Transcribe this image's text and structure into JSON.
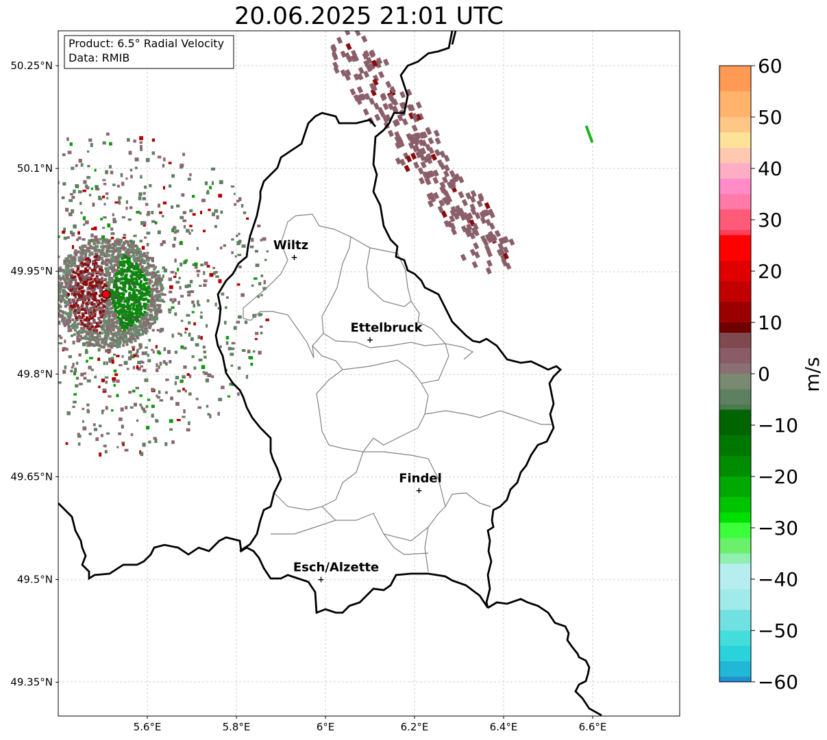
{
  "title": "20.06.2025 21:01 UTC",
  "info_box": {
    "product": "Product: 6.5° Radial Velocity",
    "data": "Data: RMIB"
  },
  "map": {
    "lon_ticks": [
      "5.6°E",
      "5.8°E",
      "6°E",
      "6.2°E",
      "6.4°E",
      "6.6°E"
    ],
    "lat_ticks": [
      "50.25°N",
      "50.1°N",
      "49.95°N",
      "49.8°N",
      "49.65°N",
      "49.5°N",
      "49.35°N"
    ],
    "cities": [
      {
        "name": "Wiltz",
        "lon": 5.93,
        "lat": 49.97
      },
      {
        "name": "Ettelbruck",
        "lon": 6.1,
        "lat": 49.85
      },
      {
        "name": "Findel",
        "lon": 6.21,
        "lat": 49.63
      },
      {
        "name": "Esch/Alzette",
        "lon": 5.99,
        "lat": 49.5
      }
    ],
    "radar_site": {
      "lon": 5.51,
      "lat": 49.92
    }
  },
  "colorbar": {
    "unit": "m/s",
    "ticks": [
      "60",
      "50",
      "40",
      "30",
      "20",
      "10",
      "0",
      "−10",
      "−20",
      "−30",
      "−40",
      "−50",
      "−60"
    ],
    "min": -60,
    "max": 60
  }
}
